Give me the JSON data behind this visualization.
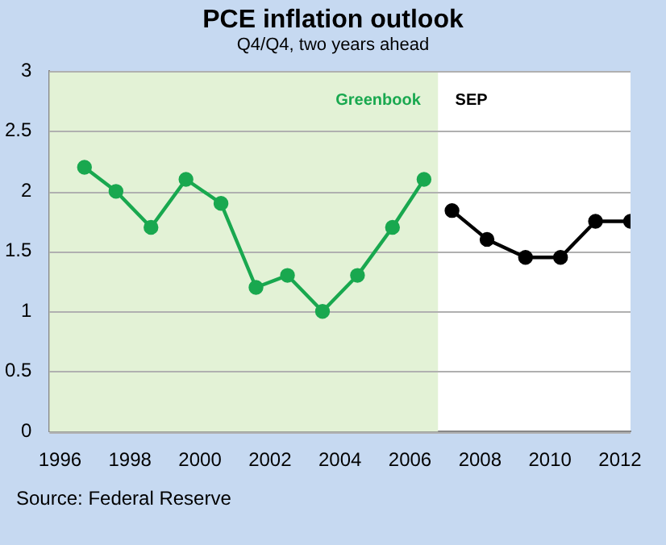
{
  "chart_data": {
    "type": "line",
    "title": "PCE inflation outlook",
    "subtitle": "Q4/Q4, two years ahead",
    "annotations": [
      "Source: Federal Reserve"
    ],
    "series": [
      {
        "name": "Greenbook",
        "color": "#19a84f",
        "x": [
          1996.7,
          1997.6,
          1998.6,
          1999.6,
          2000.6,
          2001.6,
          2002.5,
          2003.5,
          2004.5,
          2005.5,
          2006.4
        ],
        "values": [
          2.2,
          2.0,
          1.7,
          2.1,
          1.9,
          1.2,
          1.3,
          1.0,
          1.3,
          1.7,
          2.1
        ]
      },
      {
        "name": "SEP",
        "color": "#000000",
        "x": [
          2007.2,
          2008.2,
          2009.3,
          2010.3,
          2011.3,
          2012.3
        ],
        "values": [
          1.84,
          1.6,
          1.45,
          1.45,
          1.75,
          1.75
        ]
      }
    ],
    "xlim": [
      1995.7,
      2012.3
    ],
    "xticks": [
      1996,
      1998,
      2000,
      2002,
      2004,
      2006,
      2008,
      2010,
      2012
    ],
    "ylim": [
      0,
      3
    ],
    "yticks": [
      0,
      0.5,
      1,
      1.5,
      2,
      2.5,
      3
    ],
    "bands": [
      {
        "axis": "x",
        "from": 1995.7,
        "to": 2006.8,
        "color": "#e3f2d6"
      }
    ],
    "grid": "y",
    "marker": "circle",
    "line_style": "solid",
    "legend": false
  }
}
